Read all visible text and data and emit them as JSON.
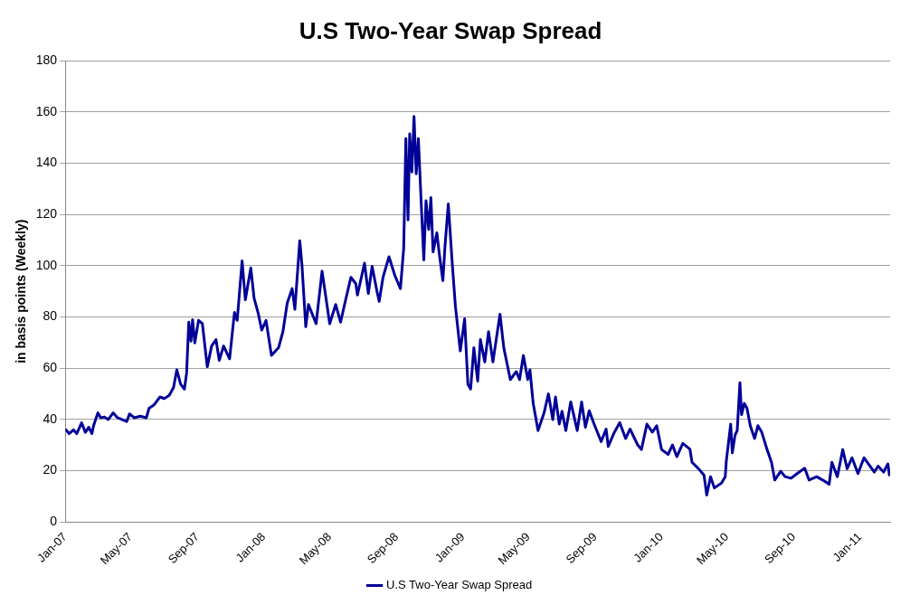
{
  "chart_data": {
    "type": "line",
    "title": "U.S Two-Year Swap Spread",
    "ylabel": "in basis points (Weekly)",
    "xlim": [
      "2007-01-01",
      "2011-02-25"
    ],
    "xticks": [
      {
        "value": "2007-01-01",
        "label": "Jan-07"
      },
      {
        "value": "2007-05-01",
        "label": "May-07"
      },
      {
        "value": "2007-09-01",
        "label": "Sep-07"
      },
      {
        "value": "2008-01-01",
        "label": "Jan-08"
      },
      {
        "value": "2008-05-01",
        "label": "May-08"
      },
      {
        "value": "2008-09-01",
        "label": "Sep-08"
      },
      {
        "value": "2009-01-01",
        "label": "Jan-09"
      },
      {
        "value": "2009-05-01",
        "label": "May-09"
      },
      {
        "value": "2009-09-01",
        "label": "Sep-09"
      },
      {
        "value": "2010-01-01",
        "label": "Jan-10"
      },
      {
        "value": "2010-05-01",
        "label": "May-10"
      },
      {
        "value": "2010-09-01",
        "label": "Sep-10"
      },
      {
        "value": "2011-01-01",
        "label": "Jan-11"
      }
    ],
    "ylim": [
      0,
      180
    ],
    "yticks": [
      0,
      20,
      40,
      60,
      80,
      100,
      120,
      140,
      160,
      180
    ],
    "grid": "y",
    "legend": "bottom",
    "marker": "none",
    "line_style": "solid",
    "series": [
      {
        "name": "U.S Two-Year Swap Spread",
        "color": "#000099",
        "x": [
          "2007-01-01",
          "2007-01-08",
          "2007-01-16",
          "2007-01-22",
          "2007-01-31",
          "2007-02-07",
          "2007-02-13",
          "2007-02-19",
          "2007-02-22",
          "2007-03-02",
          "2007-03-07",
          "2007-03-14",
          "2007-03-21",
          "2007-03-30",
          "2007-04-07",
          "2007-04-15",
          "2007-04-24",
          "2007-04-29",
          "2007-05-08",
          "2007-05-19",
          "2007-05-30",
          "2007-06-04",
          "2007-06-13",
          "2007-06-24",
          "2007-07-02",
          "2007-07-11",
          "2007-07-19",
          "2007-07-25",
          "2007-08-01",
          "2007-08-08",
          "2007-08-12",
          "2007-08-16",
          "2007-08-20",
          "2007-08-23",
          "2007-08-27",
          "2007-09-03",
          "2007-09-10",
          "2007-09-19",
          "2007-09-27",
          "2007-10-05",
          "2007-10-11",
          "2007-10-19",
          "2007-10-30",
          "2007-11-08",
          "2007-11-13",
          "2007-11-22",
          "2007-11-28",
          "2007-12-08",
          "2007-12-14",
          "2007-12-22",
          "2007-12-28",
          "2008-01-05",
          "2008-01-15",
          "2008-01-28",
          "2008-02-05",
          "2008-02-13",
          "2008-02-22",
          "2008-02-27",
          "2008-03-07",
          "2008-03-11",
          "2008-03-18",
          "2008-03-23",
          "2008-04-06",
          "2008-04-17",
          "2008-05-01",
          "2008-05-12",
          "2008-05-21",
          "2008-05-29",
          "2008-06-09",
          "2008-06-18",
          "2008-06-21",
          "2008-07-04",
          "2008-07-11",
          "2008-07-18",
          "2008-07-27",
          "2008-07-31",
          "2008-08-07",
          "2008-08-18",
          "2008-08-29",
          "2008-09-08",
          "2008-09-14",
          "2008-09-18",
          "2008-09-22",
          "2008-09-25",
          "2008-09-29",
          "2008-10-03",
          "2008-10-07",
          "2008-10-11",
          "2008-10-16",
          "2008-10-21",
          "2008-10-25",
          "2008-10-30",
          "2008-11-03",
          "2008-11-07",
          "2008-11-14",
          "2008-11-18",
          "2008-11-25",
          "2008-11-29",
          "2008-12-05",
          "2008-12-12",
          "2008-12-18",
          "2008-12-27",
          "2009-01-04",
          "2009-01-10",
          "2009-01-15",
          "2009-01-21",
          "2009-01-28",
          "2009-02-02",
          "2009-02-10",
          "2009-02-17",
          "2009-02-25",
          "2009-03-10",
          "2009-03-17",
          "2009-03-29",
          "2009-04-09",
          "2009-04-15",
          "2009-04-22",
          "2009-04-30",
          "2009-05-04",
          "2009-05-10",
          "2009-05-19",
          "2009-05-30",
          "2009-06-07",
          "2009-06-15",
          "2009-06-20",
          "2009-06-27",
          "2009-07-02",
          "2009-07-09",
          "2009-07-18",
          "2009-07-30",
          "2009-08-07",
          "2009-08-14",
          "2009-08-21",
          "2009-08-30",
          "2009-09-12",
          "2009-09-21",
          "2009-09-25",
          "2009-10-05",
          "2009-10-16",
          "2009-10-27",
          "2009-11-04",
          "2009-11-18",
          "2009-11-25",
          "2009-12-05",
          "2009-12-15",
          "2009-12-23",
          "2010-01-01",
          "2010-01-13",
          "2010-01-21",
          "2010-01-29",
          "2010-02-09",
          "2010-02-22",
          "2010-02-26",
          "2010-03-10",
          "2010-03-20",
          "2010-03-25",
          "2010-04-01",
          "2010-04-08",
          "2010-04-21",
          "2010-04-28",
          "2010-04-30",
          "2010-05-08",
          "2010-05-11",
          "2010-05-16",
          "2010-05-20",
          "2010-05-25",
          "2010-05-28",
          "2010-06-02",
          "2010-06-07",
          "2010-06-13",
          "2010-06-21",
          "2010-06-27",
          "2010-07-04",
          "2010-07-13",
          "2010-07-22",
          "2010-07-28",
          "2010-08-08",
          "2010-08-16",
          "2010-08-27",
          "2010-09-07",
          "2010-09-21",
          "2010-09-29",
          "2010-10-13",
          "2010-10-24",
          "2010-11-05",
          "2010-11-10",
          "2010-11-20",
          "2010-11-30",
          "2010-12-08",
          "2010-12-17",
          "2010-12-28",
          "2011-01-08",
          "2011-01-16",
          "2011-01-27",
          "2011-02-03",
          "2011-02-13",
          "2011-02-21",
          "2011-02-24"
        ],
        "values": [
          36.3,
          34.5,
          36,
          34.5,
          38.7,
          35,
          37,
          34.5,
          37.6,
          42.6,
          40.7,
          41,
          40,
          42.6,
          40.7,
          40,
          39.2,
          42.2,
          40.7,
          41.3,
          40.7,
          44.4,
          45.7,
          48.8,
          48.2,
          49.4,
          52.5,
          59.4,
          53.8,
          51.9,
          58.1,
          78,
          70.6,
          79,
          69.9,
          78.7,
          77.4,
          60.6,
          68.7,
          71.2,
          63.1,
          68.7,
          63.7,
          81.8,
          78.7,
          101.9,
          86.7,
          99.2,
          87.4,
          81.1,
          74.9,
          78.7,
          65,
          68,
          74.3,
          85.5,
          91.1,
          83,
          109.8,
          100.4,
          76.2,
          84.9,
          77.4,
          97.9,
          77.4,
          84.9,
          78,
          85.5,
          95.5,
          93,
          88.6,
          101,
          89.2,
          99.8,
          89.9,
          86.1,
          95.5,
          103.5,
          96.1,
          91.1,
          106.7,
          149.6,
          117.9,
          151.5,
          136.6,
          158.3,
          135.9,
          149.6,
          125.4,
          102.3,
          125.4,
          114.2,
          126.6,
          105.4,
          112.9,
          105.4,
          94.2,
          107.9,
          124.1,
          101.7,
          84.3,
          66.8,
          79.3,
          53.8,
          51.9,
          68,
          55,
          71.2,
          62.5,
          74.3,
          62.5,
          81.1,
          68,
          55.6,
          58.7,
          55.6,
          65,
          55.6,
          59.4,
          46.3,
          35.7,
          42.6,
          50,
          40,
          48.8,
          38.2,
          43.2,
          35.7,
          46.9,
          35.7,
          46.9,
          37,
          43.4,
          38.2,
          31.4,
          36.3,
          29.5,
          34.5,
          38.8,
          32.6,
          36.3,
          30.1,
          28.3,
          38.2,
          35.1,
          37.6,
          28.3,
          26.4,
          30.1,
          25.5,
          30.7,
          28.5,
          23.3,
          20.8,
          18.3,
          10.5,
          17.7,
          13.3,
          15.2,
          17.7,
          23.9,
          38.2,
          27,
          33.9,
          35.7,
          54.4,
          41.9,
          46.3,
          44.4,
          37.6,
          32.6,
          37.6,
          35.1,
          28.9,
          23.3,
          16.4,
          19.8,
          17.7,
          17.1,
          18.9,
          21,
          16.4,
          17.7,
          16.4,
          14.8,
          23.3,
          17.7,
          28.3,
          20.8,
          25.1,
          18.9,
          25.1,
          22.7,
          19.5,
          21.8,
          19.5,
          22.7,
          17.9
        ]
      }
    ]
  }
}
